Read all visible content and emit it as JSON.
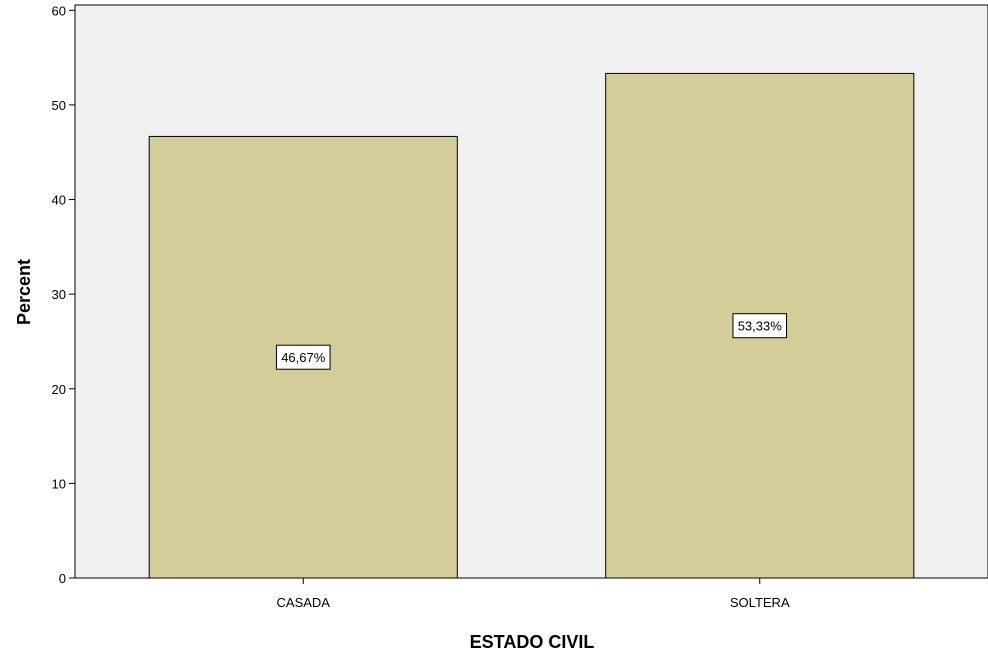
{
  "chart_data": {
    "type": "bar",
    "categories": [
      "CASADA",
      "SOLTERA"
    ],
    "values": [
      46.67,
      53.33
    ],
    "data_labels": [
      "46,67%",
      "53,33%"
    ],
    "title": "",
    "xlabel": "ESTADO CIVIL",
    "ylabel": "Percent",
    "ylim": [
      0,
      60
    ],
    "yticks": [
      "0",
      "10",
      "20",
      "30",
      "40",
      "50",
      "60"
    ],
    "grid": false,
    "legend": "none",
    "colors": {
      "plot_background": "#f0f0f0",
      "bar_fill": "#d3ce99",
      "bar_stroke": "#000000",
      "label_box": "#ffffff"
    }
  }
}
